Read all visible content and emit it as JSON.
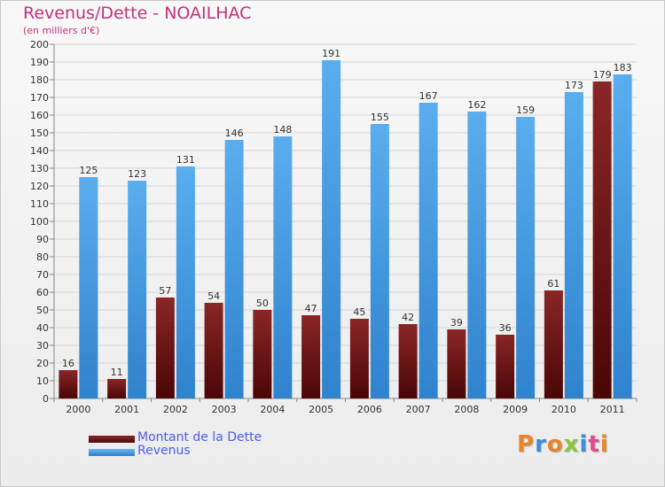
{
  "title": "Revenus/Dette - NOAILHAC",
  "subtitle": "(en milliers d'€)",
  "logo": "Proxiti",
  "colors": {
    "title": "#c0337a",
    "dette": "#7a1a1a",
    "revenus": "#3b9ae6",
    "legend_text": "#4a5ee8"
  },
  "chart_data": {
    "type": "bar",
    "title": "Revenus/Dette - NOAILHAC",
    "subtitle": "(en milliers d'€)",
    "categories": [
      "2000",
      "2001",
      "2002",
      "2003",
      "2004",
      "2005",
      "2006",
      "2007",
      "2008",
      "2009",
      "2010",
      "2011"
    ],
    "series": [
      {
        "name": "Montant de la Dette",
        "values": [
          16,
          11,
          57,
          54,
          50,
          47,
          45,
          42,
          39,
          36,
          61,
          179
        ]
      },
      {
        "name": "Revenus",
        "values": [
          125,
          123,
          131,
          146,
          148,
          191,
          155,
          167,
          162,
          159,
          173,
          183
        ]
      }
    ],
    "ylim": [
      0,
      200
    ],
    "ytick_step": 10,
    "grid": true,
    "legend_position": "bottom-left"
  }
}
